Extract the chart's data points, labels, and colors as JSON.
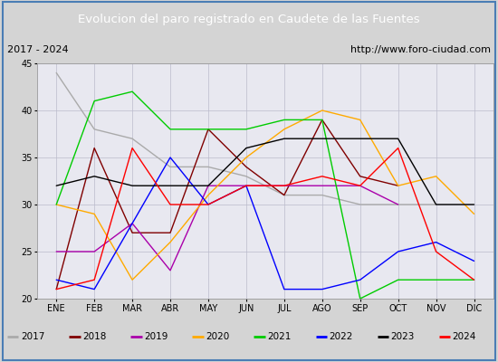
{
  "title": "Evolucion del paro registrado en Caudete de las Fuentes",
  "subtitle_left": "2017 - 2024",
  "subtitle_right": "http://www.foro-ciudad.com",
  "months": [
    "ENE",
    "FEB",
    "MAR",
    "ABR",
    "MAY",
    "JUN",
    "JUL",
    "AGO",
    "SEP",
    "OCT",
    "NOV",
    "DIC"
  ],
  "ylim": [
    20,
    45
  ],
  "yticks": [
    20,
    25,
    30,
    35,
    40,
    45
  ],
  "series": {
    "2017": {
      "color": "#aaaaaa",
      "values": [
        44,
        38,
        37,
        34,
        34,
        33,
        31,
        31,
        30,
        30,
        30,
        null
      ]
    },
    "2018": {
      "color": "#800000",
      "values": [
        21,
        36,
        27,
        27,
        38,
        34,
        31,
        39,
        33,
        32,
        null,
        null
      ]
    },
    "2019": {
      "color": "#aa00aa",
      "values": [
        25,
        25,
        28,
        23,
        32,
        32,
        32,
        32,
        32,
        30,
        null,
        null
      ]
    },
    "2020": {
      "color": "#ffaa00",
      "values": [
        30,
        29,
        22,
        26,
        31,
        35,
        38,
        40,
        39,
        32,
        33,
        29
      ]
    },
    "2021": {
      "color": "#00cc00",
      "values": [
        30,
        41,
        42,
        38,
        38,
        38,
        39,
        39,
        20,
        22,
        22,
        22
      ]
    },
    "2022": {
      "color": "#0000ff",
      "values": [
        22,
        21,
        28,
        35,
        30,
        32,
        21,
        21,
        22,
        25,
        26,
        24
      ]
    },
    "2023": {
      "color": "#000000",
      "values": [
        32,
        33,
        32,
        32,
        32,
        36,
        37,
        37,
        37,
        37,
        30,
        30
      ]
    },
    "2024": {
      "color": "#ff0000",
      "values": [
        21,
        22,
        36,
        30,
        30,
        32,
        32,
        33,
        32,
        36,
        25,
        22
      ]
    }
  },
  "legend_order": [
    "2017",
    "2018",
    "2019",
    "2020",
    "2021",
    "2022",
    "2023",
    "2024"
  ],
  "bg_color": "#d4d4d4",
  "plot_bg_color": "#e8e8f0",
  "title_bg_color": "#4a7db5",
  "title_text_color": "#ffffff",
  "header_bg_color": "#f0f0f0",
  "legend_bg_color": "#f0f0f0",
  "border_color": "#4a7db5",
  "grid_color": "#bbbbcc"
}
